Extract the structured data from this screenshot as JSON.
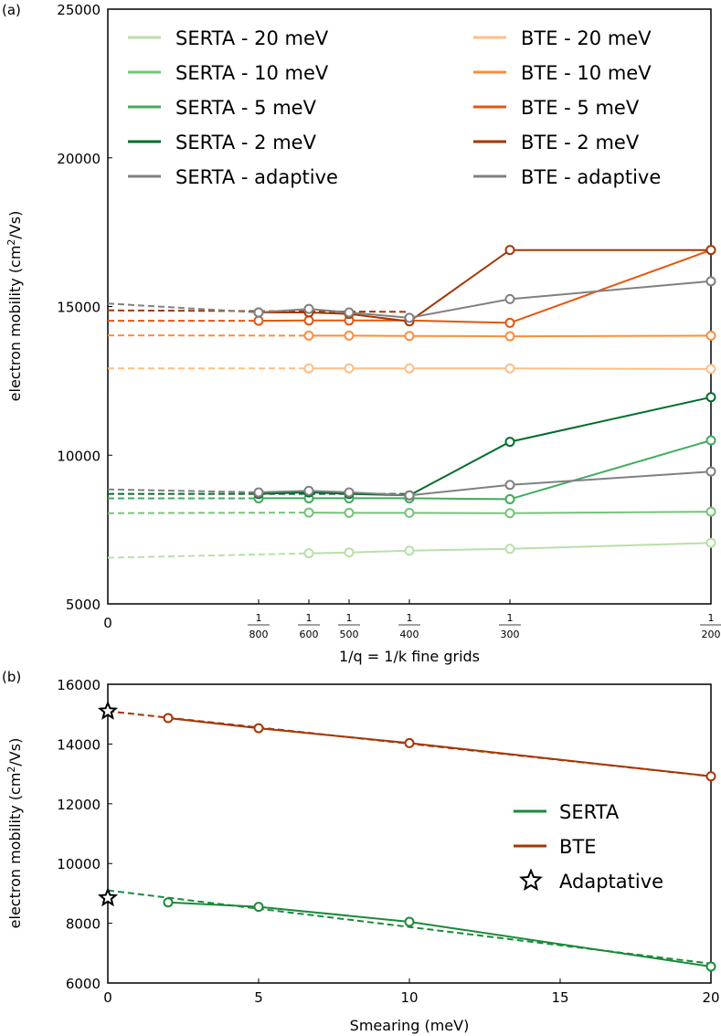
{
  "chart_data": [
    {
      "panel_label": "(a)",
      "type": "line",
      "xlabel": "1/q = 1/k fine grids",
      "ylabel": "electron mobility (cm²/Vs)",
      "xlim": [
        0,
        0.005
      ],
      "ylim": [
        5000,
        25000
      ],
      "yticks": [
        5000,
        10000,
        15000,
        20000,
        25000
      ],
      "xticks": [
        {
          "value": 0,
          "label": "0"
        },
        {
          "value": 0.00125,
          "num": "1",
          "den": "800"
        },
        {
          "value": 0.0016667,
          "num": "1",
          "den": "600"
        },
        {
          "value": 0.002,
          "num": "1",
          "den": "500"
        },
        {
          "value": 0.0025,
          "num": "1",
          "den": "400"
        },
        {
          "value": 0.0033333,
          "num": "1",
          "den": "300"
        },
        {
          "value": 0.005,
          "num": "1",
          "den": "200"
        }
      ],
      "legend_placement": "top",
      "series": [
        {
          "name": "SERTA - 20 meV",
          "color": "#b8e0a8",
          "x": [
            0.00166667,
            0.002,
            0.0025,
            0.00333333,
            0.005
          ],
          "values": [
            6700,
            6730,
            6790,
            6850,
            7050
          ],
          "extrapolation": [
            [
              0,
              6550
            ],
            [
              0.00166667,
              6700
            ]
          ]
        },
        {
          "name": "SERTA - 10 meV",
          "color": "#74c476",
          "x": [
            0.00166667,
            0.002,
            0.0025,
            0.00333333,
            0.005
          ],
          "values": [
            8070,
            8060,
            8060,
            8050,
            8100
          ],
          "extrapolation": [
            [
              0,
              8050
            ],
            [
              0.00166667,
              8070
            ]
          ]
        },
        {
          "name": "SERTA - 5 meV",
          "color": "#41ab5d",
          "x": [
            0.00125,
            0.00166667,
            0.002,
            0.0025,
            0.00333333,
            0.005
          ],
          "values": [
            8550,
            8550,
            8550,
            8550,
            8520,
            10500
          ],
          "extrapolation": [
            [
              0,
              8550
            ],
            [
              0.00125,
              8550
            ]
          ]
        },
        {
          "name": "SERTA - 2 meV",
          "color": "#006d2c",
          "x": [
            0.00125,
            0.00166667,
            0.002,
            0.0025,
            0.00333333,
            0.005
          ],
          "values": [
            8700,
            8750,
            8700,
            8650,
            10450,
            11950
          ],
          "extrapolation": [
            [
              0,
              8700
            ],
            [
              0.0025,
              8700
            ]
          ]
        },
        {
          "name": "SERTA - adaptive",
          "color": "#808080",
          "x": [
            0.00125,
            0.00166667,
            0.002,
            0.0025,
            0.00333333,
            0.005
          ],
          "values": [
            8750,
            8800,
            8750,
            8650,
            9000,
            9450
          ],
          "extrapolation": [
            [
              0,
              8850
            ],
            [
              0.00125,
              8750
            ]
          ]
        },
        {
          "name": "BTE - 20 meV",
          "color": "#fdbe85",
          "x": [
            0.00166667,
            0.002,
            0.0025,
            0.00333333,
            0.005
          ],
          "values": [
            12920,
            12920,
            12920,
            12920,
            12900
          ],
          "extrapolation": [
            [
              0,
              12920
            ],
            [
              0.00166667,
              12920
            ]
          ]
        },
        {
          "name": "BTE - 10 meV",
          "color": "#fd8d3c",
          "x": [
            0.00166667,
            0.002,
            0.0025,
            0.00333333,
            0.005
          ],
          "values": [
            14020,
            14020,
            14010,
            14000,
            14020
          ],
          "extrapolation": [
            [
              0,
              14030
            ],
            [
              0.00166667,
              14020
            ]
          ]
        },
        {
          "name": "BTE - 5 meV",
          "color": "#e6550d",
          "x": [
            0.00125,
            0.00166667,
            0.002,
            0.0025,
            0.00333333,
            0.005
          ],
          "values": [
            14520,
            14530,
            14530,
            14530,
            14450,
            16900
          ],
          "extrapolation": [
            [
              0,
              14520
            ],
            [
              0.00125,
              14520
            ]
          ]
        },
        {
          "name": "BTE - 2 meV",
          "color": "#a63603",
          "x": [
            0.00125,
            0.00166667,
            0.002,
            0.0025,
            0.00333333,
            0.005
          ],
          "values": [
            14800,
            14800,
            14750,
            14500,
            16900,
            16900
          ],
          "extrapolation": [
            [
              0,
              14870
            ],
            [
              0.0025,
              14820
            ]
          ]
        },
        {
          "name": "BTE - adaptive",
          "color": "#808080",
          "x": [
            0.00125,
            0.00166667,
            0.002,
            0.0025,
            0.00333333,
            0.005
          ],
          "values": [
            14800,
            14920,
            14800,
            14620,
            15250,
            15850
          ],
          "extrapolation": [
            [
              0,
              15100
            ],
            [
              0.00125,
              14800
            ]
          ]
        }
      ]
    },
    {
      "panel_label": "(b)",
      "type": "line",
      "xlabel": "Smearing (meV)",
      "ylabel": "electron mobility (cm²/Vs)",
      "xlim": [
        0,
        20
      ],
      "ylim": [
        6000,
        16000
      ],
      "xticks": [
        0,
        5,
        10,
        15,
        20
      ],
      "yticks": [
        6000,
        8000,
        10000,
        12000,
        14000,
        16000
      ],
      "legend_placement": "center-right",
      "series": [
        {
          "name": "SERTA",
          "color": "#1a8a3a",
          "x": [
            2,
            5,
            10,
            20
          ],
          "values": [
            8700,
            8550,
            8050,
            6550
          ],
          "fit": [
            [
              0,
              9100
            ],
            [
              20,
              6650
            ]
          ]
        },
        {
          "name": "BTE",
          "color": "#a63603",
          "x": [
            2,
            5,
            10,
            20
          ],
          "values": [
            14870,
            14530,
            14030,
            12920
          ],
          "fit": [
            [
              0,
              15100
            ],
            [
              20,
              12920
            ]
          ]
        },
        {
          "name": "Adaptative",
          "marker": "star",
          "color": "#000000",
          "x": [
            0,
            0
          ],
          "values": [
            15100,
            8850
          ]
        }
      ]
    }
  ]
}
